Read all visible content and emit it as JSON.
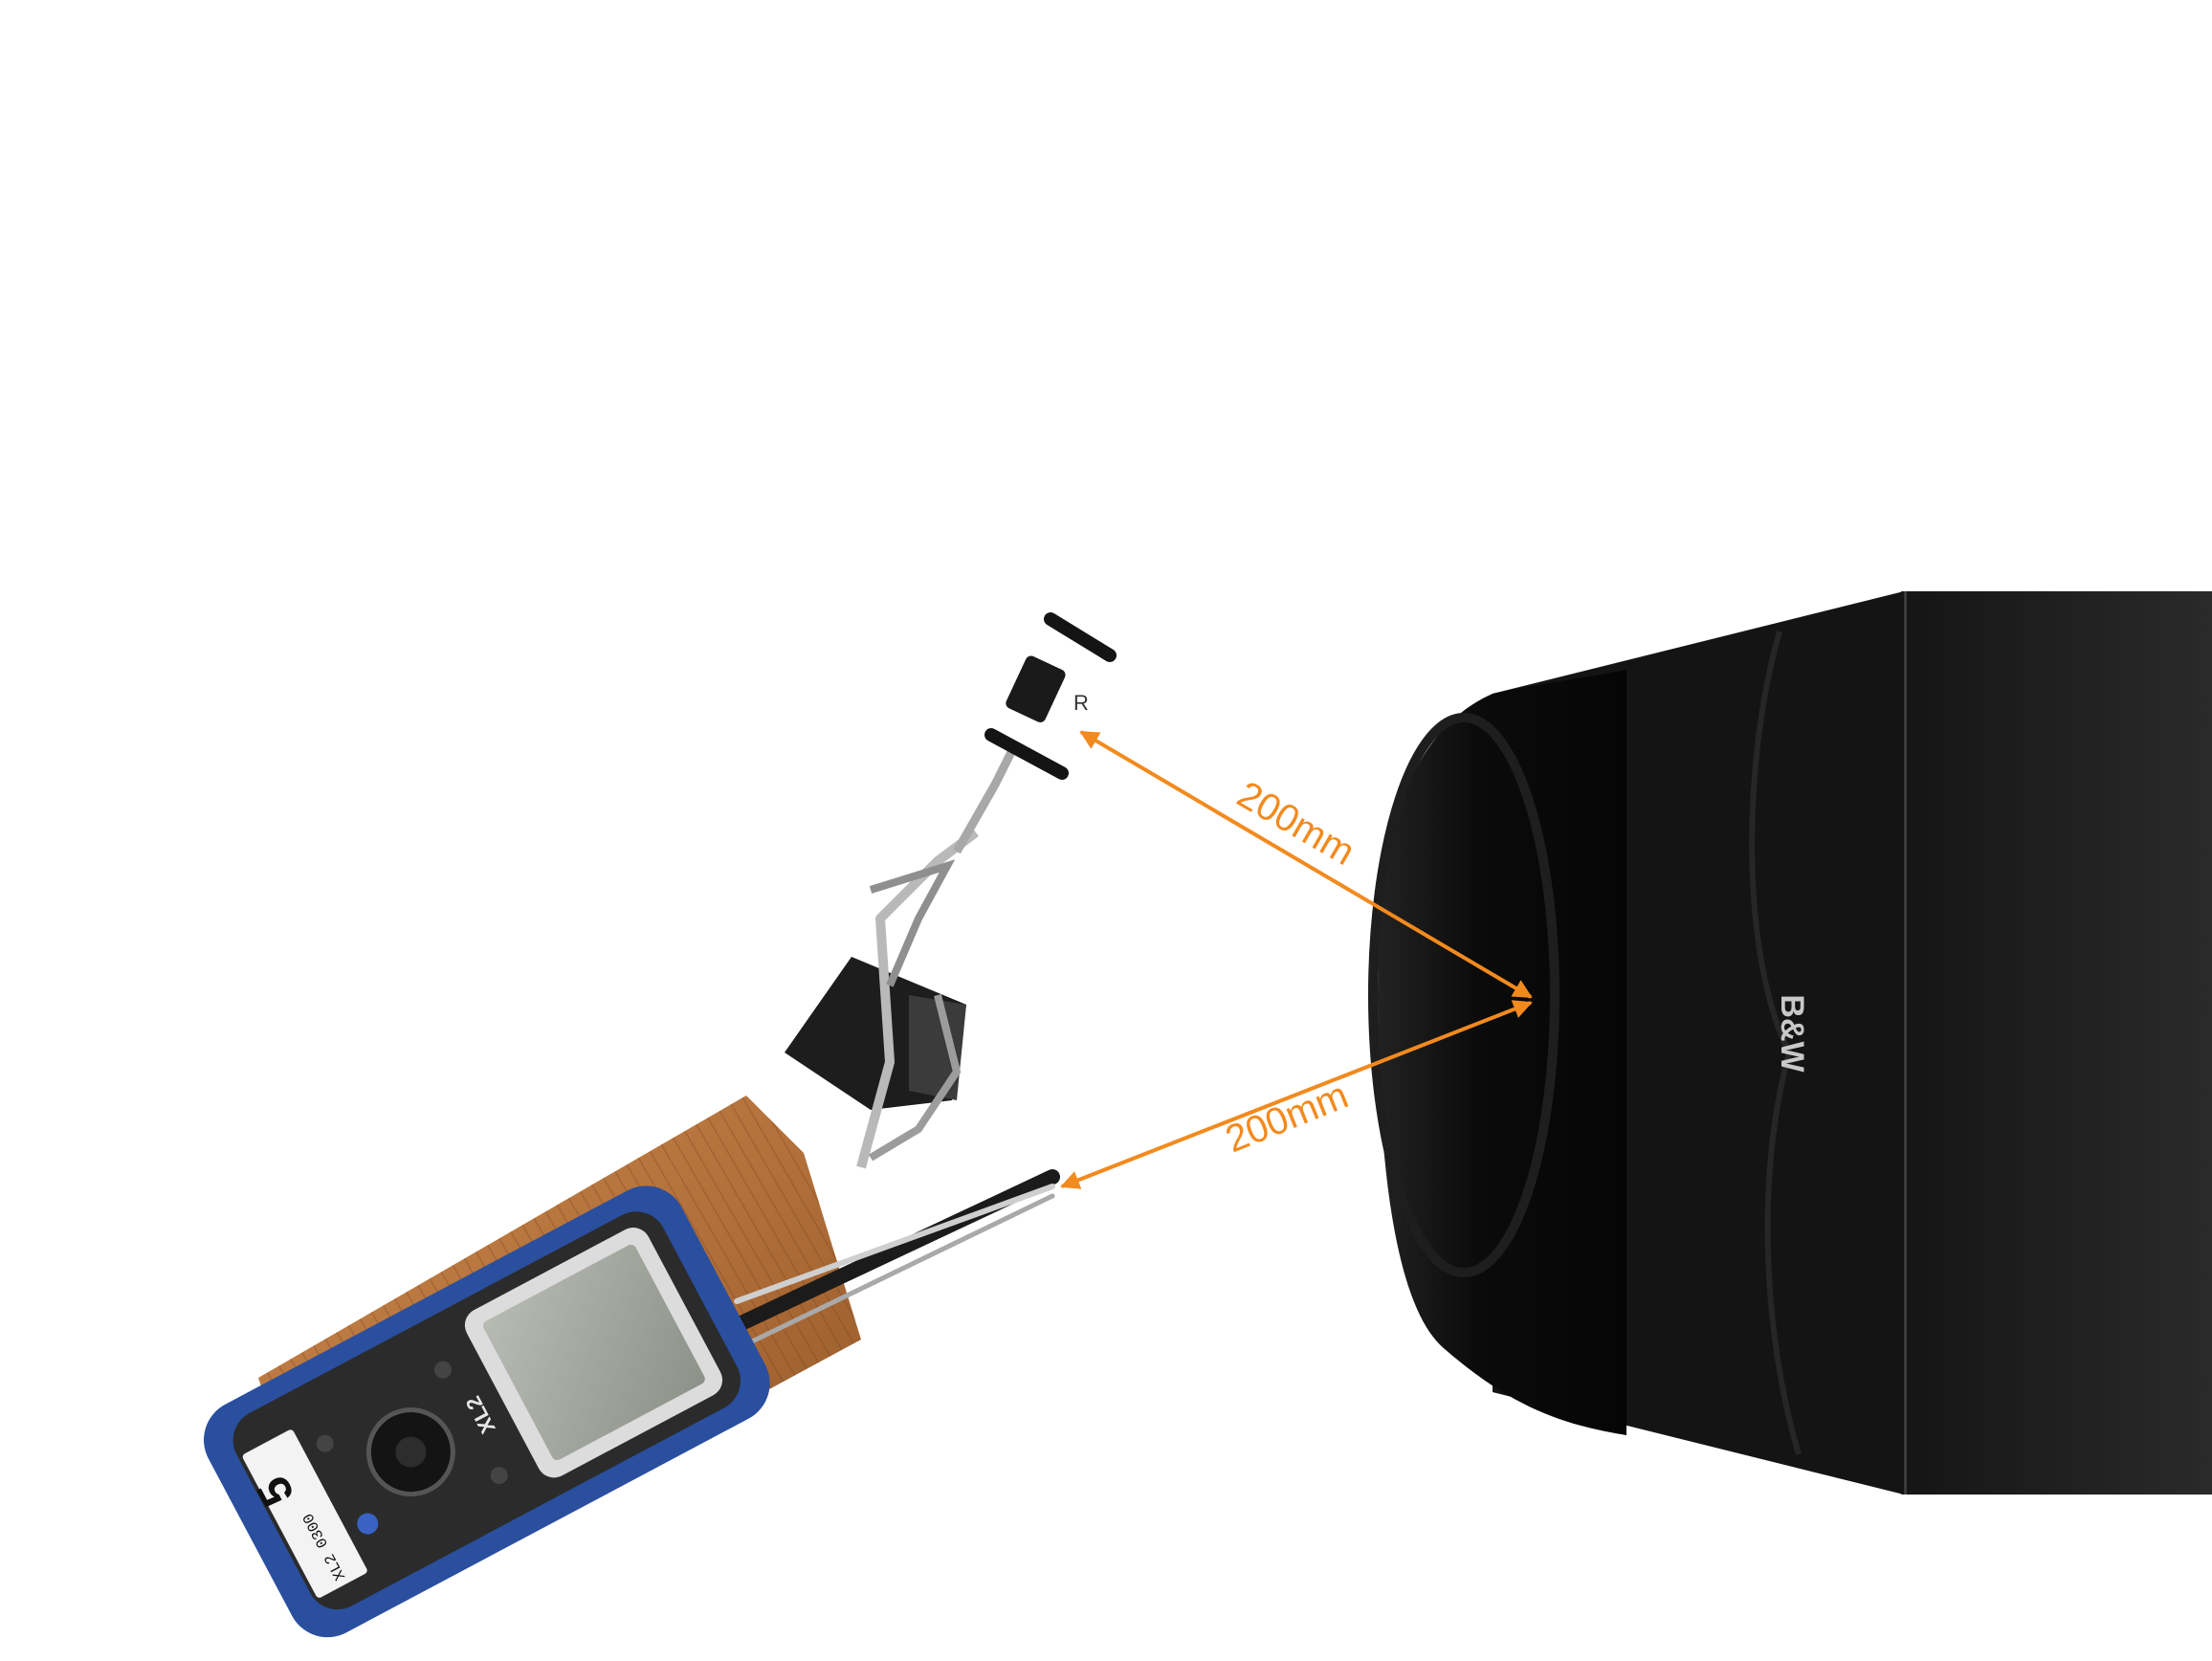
{
  "annotations": {
    "upper_distance_label": "200mm",
    "lower_distance_label": "200mm",
    "arrow_color": "#f28a1e"
  },
  "speaker": {
    "brand_logo": "B&W",
    "cabinet_color": "#1c1c1c",
    "grille_color": "#0e0e0e"
  },
  "meter": {
    "display_number": "5",
    "serial_text": "XL2 0300",
    "brand_text": "XL2",
    "body_color": "#2a4f9e"
  },
  "microphone_stand": {
    "tag_text": "R"
  }
}
